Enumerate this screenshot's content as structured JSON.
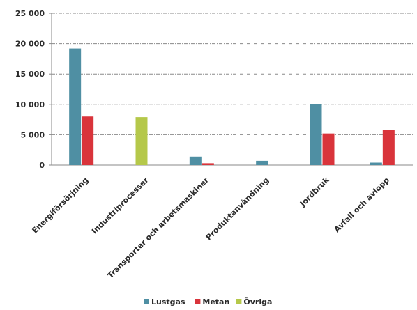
{
  "chart_data": {
    "type": "bar",
    "categories": [
      "Energiförsörjning",
      "Industriprocesser",
      "Transporter och arbetsmaskiner",
      "Produktanvändning",
      "Jordbruk",
      "Avfall och avlopp"
    ],
    "series": [
      {
        "name": "Lustgas",
        "color": "#4f8fa3",
        "values": [
          19200,
          0,
          1400,
          700,
          10000,
          400
        ]
      },
      {
        "name": "Metan",
        "color": "#d9343b",
        "values": [
          8000,
          0,
          300,
          0,
          5200,
          5800
        ]
      },
      {
        "name": "Övriga",
        "color": "#b5c84a",
        "values": [
          0,
          7900,
          0,
          0,
          0,
          0
        ]
      }
    ],
    "ylim": [
      0,
      25000
    ],
    "yticks": [
      0,
      5000,
      10000,
      15000,
      20000,
      25000
    ],
    "ytick_labels": [
      "0",
      "5 000",
      "10 000",
      "15 000",
      "20 000",
      "25 000"
    ],
    "grid": true,
    "legend": "bottom"
  }
}
